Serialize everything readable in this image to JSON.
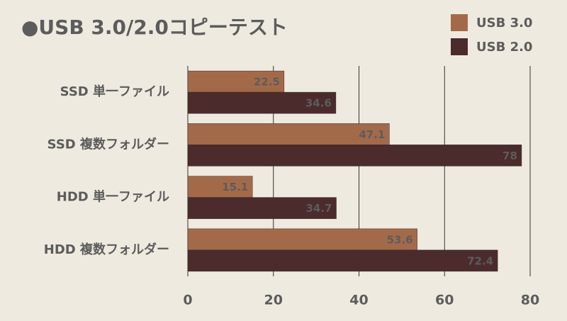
{
  "chart_data": {
    "type": "bar",
    "orientation": "horizontal",
    "title": "●USB 3.0/2.0コピーテスト",
    "categories": [
      "SSD 単一ファイル",
      "SSD 複数フォルダー",
      "HDD 単一ファイル",
      "HDD 複数フォルダー"
    ],
    "series": [
      {
        "name": "USB 3.0",
        "color": "#a36a4a",
        "values": [
          22.5,
          47.1,
          15.1,
          53.6
        ]
      },
      {
        "name": "USB 2.0",
        "color": "#4b2b2c",
        "values": [
          34.6,
          78,
          34.7,
          72.4
        ]
      }
    ],
    "xlim": [
      0,
      80
    ],
    "xticks": [
      0,
      20,
      40,
      60,
      80
    ],
    "grid": true,
    "legend": "top-right"
  }
}
